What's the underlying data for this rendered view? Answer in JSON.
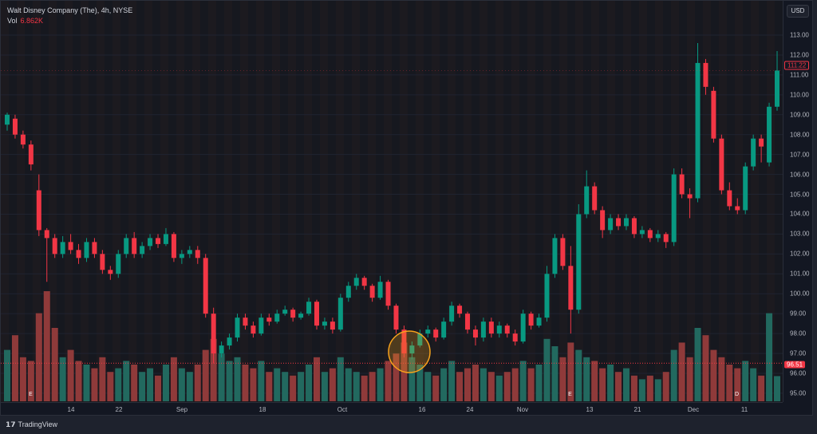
{
  "legend": {
    "title": "Walt Disney Company (The), 4h, NYSE",
    "vol_label": "Vol",
    "vol_value": "6.862K"
  },
  "currency": "USD",
  "last_price": "111.22",
  "current_line_price": "96.51",
  "colors": {
    "up": "#089981",
    "down": "#f23645",
    "up_vol": "#22695f",
    "down_vol": "#8f3a3a",
    "annotation": "#f7a21b",
    "background": "#131722"
  },
  "price_axis": {
    "ticks": [
      "113.00",
      "112.00",
      "111.00",
      "110.00",
      "109.00",
      "108.00",
      "107.00",
      "106.00",
      "105.00",
      "104.00",
      "103.00",
      "102.00",
      "101.00",
      "100.00",
      "99.00",
      "98.00",
      "97.00",
      "96.00",
      "95.00"
    ]
  },
  "time_axis": {
    "labels": [
      "14",
      "22",
      "Sep",
      "18",
      "Oct",
      "16",
      "24",
      "Nov",
      "13",
      "21",
      "Dec",
      "11"
    ]
  },
  "markers": [
    {
      "letter": "E",
      "color": "#089981"
    },
    {
      "letter": "E",
      "color": "#f23645"
    },
    {
      "letter": "D",
      "color": "#2962ff"
    }
  ],
  "brand": {
    "logo": "TV",
    "name": "TradingView"
  },
  "chart_data": {
    "type": "candlestick",
    "ylim": [
      94.6,
      113.6
    ],
    "fields": [
      "open",
      "high",
      "low",
      "close",
      "volume_k"
    ],
    "candles": [
      [
        108.5,
        109.1,
        108.2,
        109.0,
        14
      ],
      [
        108.8,
        109.0,
        107.8,
        108.0,
        18
      ],
      [
        108.0,
        108.2,
        107.3,
        107.5,
        12
      ],
      [
        107.5,
        107.7,
        106.2,
        106.5,
        11
      ],
      [
        105.2,
        106.0,
        102.9,
        103.2,
        24
      ],
      [
        103.2,
        103.3,
        100.6,
        102.8,
        30
      ],
      [
        102.8,
        103.0,
        101.8,
        102.0,
        20
      ],
      [
        102.0,
        102.9,
        101.8,
        102.6,
        12
      ],
      [
        102.6,
        103.0,
        102.0,
        102.2,
        14
      ],
      [
        102.2,
        102.5,
        101.5,
        101.8,
        11
      ],
      [
        101.8,
        102.8,
        101.6,
        102.6,
        10
      ],
      [
        102.6,
        102.8,
        101.8,
        102.0,
        9
      ],
      [
        102.0,
        102.2,
        101.0,
        101.2,
        12
      ],
      [
        101.2,
        101.4,
        100.7,
        101.0,
        8
      ],
      [
        101.0,
        102.2,
        100.8,
        102.0,
        9
      ],
      [
        102.0,
        103.0,
        101.8,
        102.8,
        11
      ],
      [
        102.8,
        103.1,
        101.8,
        102.0,
        10
      ],
      [
        102.0,
        102.6,
        101.8,
        102.4,
        8
      ],
      [
        102.4,
        103.0,
        102.2,
        102.8,
        9
      ],
      [
        102.8,
        103.0,
        102.3,
        102.5,
        7
      ],
      [
        102.5,
        103.3,
        102.4,
        103.0,
        10
      ],
      [
        103.0,
        103.1,
        101.6,
        101.8,
        12
      ],
      [
        101.8,
        102.2,
        101.5,
        102.0,
        9
      ],
      [
        102.0,
        102.4,
        101.8,
        102.2,
        8
      ],
      [
        102.2,
        102.4,
        101.5,
        101.8,
        10
      ],
      [
        101.8,
        102.0,
        98.8,
        99.0,
        14
      ],
      [
        99.0,
        99.3,
        96.5,
        97.0,
        17
      ],
      [
        97.0,
        97.6,
        96.8,
        97.4,
        13
      ],
      [
        97.4,
        98.0,
        97.2,
        97.8,
        11
      ],
      [
        97.8,
        99.0,
        97.6,
        98.8,
        12
      ],
      [
        98.8,
        99.0,
        98.2,
        98.4,
        10
      ],
      [
        98.4,
        98.6,
        97.8,
        98.0,
        9
      ],
      [
        98.0,
        99.0,
        97.9,
        98.8,
        11
      ],
      [
        98.8,
        99.0,
        98.4,
        98.6,
        8
      ],
      [
        98.6,
        99.2,
        98.5,
        99.0,
        9
      ],
      [
        99.0,
        99.4,
        98.9,
        99.2,
        8
      ],
      [
        99.2,
        99.3,
        98.6,
        98.8,
        7
      ],
      [
        98.8,
        99.1,
        98.7,
        99.0,
        8
      ],
      [
        99.0,
        99.8,
        98.9,
        99.6,
        10
      ],
      [
        99.6,
        99.7,
        98.2,
        98.4,
        12
      ],
      [
        98.4,
        98.8,
        98.2,
        98.6,
        8
      ],
      [
        98.6,
        98.8,
        98.0,
        98.2,
        9
      ],
      [
        98.2,
        100.0,
        98.1,
        99.8,
        12
      ],
      [
        99.8,
        100.6,
        99.6,
        100.4,
        9
      ],
      [
        100.4,
        101.0,
        100.2,
        100.8,
        8
      ],
      [
        100.8,
        100.9,
        100.2,
        100.4,
        7
      ],
      [
        100.4,
        100.5,
        99.6,
        99.8,
        8
      ],
      [
        99.8,
        100.9,
        99.7,
        100.6,
        9
      ],
      [
        100.6,
        100.7,
        99.2,
        99.4,
        11
      ],
      [
        99.4,
        99.5,
        98.0,
        98.2,
        13
      ],
      [
        98.2,
        98.4,
        96.8,
        97.0,
        16
      ],
      [
        97.0,
        97.6,
        96.7,
        97.4,
        12
      ],
      [
        97.4,
        98.2,
        97.3,
        98.0,
        10
      ],
      [
        98.0,
        98.4,
        97.8,
        98.2,
        8
      ],
      [
        98.2,
        98.3,
        97.6,
        97.8,
        7
      ],
      [
        97.8,
        98.8,
        97.7,
        98.6,
        9
      ],
      [
        98.6,
        99.6,
        98.4,
        99.4,
        11
      ],
      [
        99.4,
        99.5,
        98.8,
        99.0,
        8
      ],
      [
        99.0,
        99.1,
        98.0,
        98.2,
        9
      ],
      [
        98.2,
        98.4,
        97.4,
        97.8,
        10
      ],
      [
        97.8,
        98.8,
        97.6,
        98.6,
        9
      ],
      [
        98.6,
        98.8,
        97.8,
        98.0,
        8
      ],
      [
        98.0,
        98.6,
        97.8,
        98.4,
        7
      ],
      [
        98.4,
        98.5,
        97.8,
        98.0,
        8
      ],
      [
        98.0,
        98.2,
        97.4,
        97.6,
        9
      ],
      [
        97.6,
        99.2,
        97.5,
        99.0,
        11
      ],
      [
        99.0,
        99.1,
        98.2,
        98.4,
        9
      ],
      [
        98.4,
        99.0,
        98.3,
        98.8,
        10
      ],
      [
        98.8,
        101.4,
        98.6,
        101.0,
        17
      ],
      [
        101.0,
        103.0,
        100.8,
        102.8,
        15
      ],
      [
        102.8,
        103.0,
        101.2,
        101.4,
        12
      ],
      [
        101.4,
        102.4,
        98.0,
        99.2,
        16
      ],
      [
        99.2,
        104.5,
        99.0,
        104.0,
        14
      ],
      [
        104.0,
        106.2,
        103.8,
        105.4,
        12
      ],
      [
        105.4,
        105.6,
        104.0,
        104.2,
        11
      ],
      [
        104.2,
        104.4,
        102.8,
        103.2,
        9
      ],
      [
        103.2,
        104.0,
        103.0,
        103.8,
        10
      ],
      [
        103.8,
        104.0,
        103.2,
        103.4,
        8
      ],
      [
        103.4,
        104.0,
        103.2,
        103.8,
        9
      ],
      [
        103.8,
        103.9,
        102.8,
        103.0,
        7
      ],
      [
        103.0,
        103.4,
        102.8,
        103.2,
        6
      ],
      [
        103.2,
        103.3,
        102.6,
        102.8,
        7
      ],
      [
        102.8,
        103.2,
        102.6,
        103.0,
        6
      ],
      [
        103.0,
        103.1,
        102.3,
        102.6,
        8
      ],
      [
        102.6,
        106.3,
        102.4,
        106.0,
        14
      ],
      [
        106.0,
        106.3,
        104.8,
        105.0,
        16
      ],
      [
        105.0,
        105.3,
        103.8,
        104.8,
        12
      ],
      [
        104.8,
        112.6,
        104.6,
        111.6,
        20
      ],
      [
        111.6,
        111.8,
        110.0,
        110.4,
        18
      ],
      [
        110.2,
        110.4,
        107.6,
        107.8,
        14
      ],
      [
        107.8,
        108.0,
        105.0,
        105.2,
        12
      ],
      [
        105.2,
        105.6,
        104.2,
        104.4,
        10
      ],
      [
        104.4,
        104.8,
        104.0,
        104.2,
        9
      ],
      [
        104.2,
        106.6,
        104.0,
        106.4,
        11
      ],
      [
        106.4,
        108.0,
        106.2,
        107.8,
        9
      ],
      [
        107.8,
        108.0,
        106.6,
        107.4,
        7
      ],
      [
        106.6,
        109.6,
        106.4,
        109.4,
        24
      ],
      [
        109.4,
        112.2,
        109.2,
        111.22,
        6.862
      ]
    ]
  }
}
